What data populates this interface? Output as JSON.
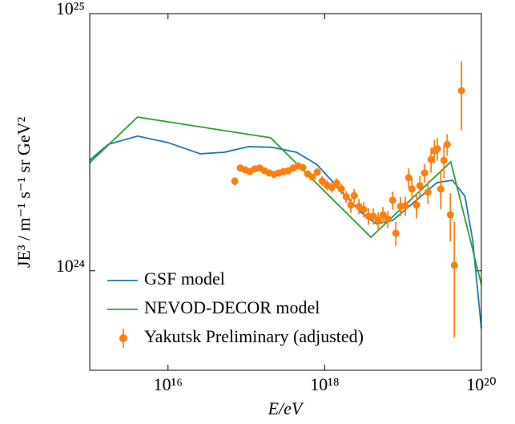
{
  "chart_data": {
    "type": "line",
    "xlabel": "E/eV",
    "ylabel": "JE³ / m⁻¹ s⁻¹ sr GeV²",
    "xscale": "log",
    "yscale": "log",
    "xlim": [
      1000000000000000.0,
      1e+20
    ],
    "ylim": [
      4.1e+23,
      1e+25
    ],
    "xticks": [
      {
        "value": 1e+16,
        "label": "10¹⁶"
      },
      {
        "value": 1e+18,
        "label": "10¹⁸"
      },
      {
        "value": 1e+20,
        "label": "10²⁰"
      }
    ],
    "yticks": [
      {
        "value": 1e+24,
        "label": "10²⁴"
      },
      {
        "value": 1e+25,
        "label": "10²⁵"
      }
    ],
    "legend": "lower left",
    "series": [
      {
        "name": "GSF model",
        "color": "#1f77b4",
        "type": "line",
        "x": [
          1000000000000000.0,
          1720000000000000.0,
          4070000000000000.0,
          1e+16,
          2.57e+16,
          5.25e+16,
          1.07e+17,
          2.14e+17,
          4.37e+17,
          7.94e+17,
          1.41e+18,
          2.88e+18,
          4.57e+18,
          7.41e+18,
          1.48e+19,
          2.69e+19,
          4.27e+19,
          6.17e+19,
          7.76e+19,
          1e+20
        ],
        "values": [
          2.69e+24,
          3.1e+24,
          3.34e+24,
          3.15e+24,
          2.85e+24,
          2.89e+24,
          3.04e+24,
          3.02e+24,
          2.89e+24,
          2.59e+24,
          2.14e+24,
          1.69e+24,
          1.52e+24,
          1.57e+24,
          1.88e+24,
          2.2e+24,
          2.25e+24,
          1.95e+24,
          1.31e+24,
          5.97e+23
        ]
      },
      {
        "name": "NEVOD-DECOR model",
        "color": "#2ca02c",
        "type": "line",
        "x": [
          1000000000000000.0,
          4070000000000000.0,
          2.04e+17,
          3.89e+18,
          4.07e+19,
          1e+20
        ],
        "values": [
          2.63e+24,
          3.96e+24,
          3.29e+24,
          1.35e+24,
          2.65e+24,
          8.85e+23
        ]
      },
      {
        "name": "Yakutsk Preliminary (adjusted)",
        "color": "#ff7f0e",
        "type": "errorbar",
        "x": [
          7.11e+16,
          8.38e+16,
          9.66e+16,
          1.11e+17,
          1.28e+17,
          1.48e+17,
          1.7e+17,
          1.96e+17,
          2.25e+17,
          2.59e+17,
          2.99e+17,
          3.44e+17,
          3.96e+17,
          4.57e+17,
          5.26e+17,
          6.07e+17,
          6.98e+17,
          8.04e+17,
          9.27e+17,
          1.07e+18,
          1.23e+18,
          1.42e+18,
          1.63e+18,
          1.88e+18,
          2.16e+18,
          2.38e+18,
          2.74e+18,
          3.15e+18,
          3.63e+18,
          4.18e+18,
          4.82e+18,
          5.55e+18,
          6.39e+18,
          7.36e+18,
          8.09e+18,
          9.31e+18,
          1.07e+19,
          1.18e+19,
          1.3e+19,
          1.49e+19,
          1.64e+19,
          1.89e+19,
          2.08e+19,
          2.28e+19,
          2.51e+19,
          2.75e+19,
          3.03e+19,
          3.33e+19,
          3.66e+19,
          4.02e+19,
          4.52e+19,
          5.58e+19
        ],
        "values": [
          2.23e+24,
          2.51e+24,
          2.47e+24,
          2.43e+24,
          2.49e+24,
          2.51e+24,
          2.45e+24,
          2.4e+24,
          2.37e+24,
          2.4e+24,
          2.43e+24,
          2.45e+24,
          2.51e+24,
          2.56e+24,
          2.52e+24,
          2.38e+24,
          2.31e+24,
          2.42e+24,
          2.23e+24,
          2.15e+24,
          2.11e+24,
          2.19e+24,
          2.08e+24,
          1.94e+24,
          1.8e+24,
          1.96e+24,
          1.78e+24,
          1.73e+24,
          1.63e+24,
          1.63e+24,
          1.57e+24,
          1.65e+24,
          1.59e+24,
          1.88e+24,
          1.4e+24,
          1.78e+24,
          1.79e+24,
          2.3e+24,
          2.08e+24,
          1.8e+24,
          2.14e+24,
          2.4e+24,
          2.02e+24,
          2.71e+24,
          2.93e+24,
          2.98e+24,
          2.08e+24,
          2.69e+24,
          3.1e+24,
          1.65e+24,
          1.05e+24,
          5.02e+24
        ],
        "errors": [
          8e+22,
          6e+22,
          6e+22,
          6e+22,
          6e+22,
          6e+22,
          6e+22,
          6e+22,
          6e+22,
          6e+22,
          6e+22,
          6e+22,
          6e+22,
          6e+22,
          6e+22,
          6e+22,
          6e+22,
          6e+22,
          1e+23,
          1e+23,
          1e+23,
          1e+23,
          1e+23,
          1e+23,
          1.2e+23,
          1.2e+23,
          1.2e+23,
          1.2e+23,
          1.2e+23,
          1.2e+23,
          1.2e+23,
          1.2e+23,
          1.2e+23,
          1.5e+23,
          1.5e+23,
          1.5e+23,
          1.5e+23,
          2e+23,
          2e+23,
          2e+23,
          2e+23,
          2e+23,
          2e+23,
          3e+23,
          3e+23,
          3e+23,
          3.5e+23,
          4e+23,
          3e+23,
          3.5e+23,
          5e+23,
          1.5e+24
        ]
      }
    ]
  }
}
